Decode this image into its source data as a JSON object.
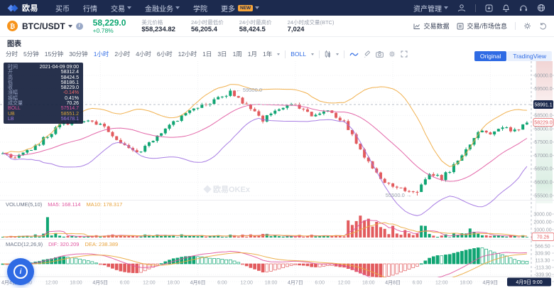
{
  "colors": {
    "navy": "#1c2a4e",
    "accent": "#2f6be4",
    "up": "#10a573",
    "down": "#e25b5e",
    "boll_mid": "#e0559f",
    "boll_ub": "#efa93c",
    "boll_lb": "#9f6fe0",
    "ma_fast": "#e0559f",
    "ma_slow": "#eba93c"
  },
  "topnav": {
    "brand": "欧易",
    "items": [
      {
        "label": "买币"
      },
      {
        "label": "行情"
      },
      {
        "label": "交易",
        "caret": true
      },
      {
        "label": "金融业务",
        "caret": true
      },
      {
        "label": "学院"
      },
      {
        "label": "更多",
        "badge": "NEW",
        "caret": true
      }
    ],
    "asset_menu": "资产管理"
  },
  "ticker": {
    "pair": "BTC/USDT",
    "price": "58,229.0",
    "change": "+0.78%",
    "stats": [
      {
        "label": "美元价格",
        "value": "$58,234.82"
      },
      {
        "label": "24小时最低价",
        "value": "56,205.4"
      },
      {
        "label": "24小时最高价",
        "value": "58,424.5"
      },
      {
        "label": "24小时成交量(BTC)",
        "value": "7,024"
      }
    ],
    "actions": [
      {
        "label": "交易数据"
      },
      {
        "label": "交易/市场信息"
      }
    ]
  },
  "chart_header": {
    "tab": "图表"
  },
  "toolbar": {
    "timeframes": [
      "分时",
      "5分钟",
      "15分钟",
      "30分钟",
      "1小时",
      "2小时",
      "4小时",
      "6小时",
      "12小时",
      "1日",
      "3日",
      "1周",
      "1月",
      "1年"
    ],
    "active_timeframe": "1小时",
    "indicator": "BOLL",
    "view_toggle": {
      "options": [
        "Original",
        "TradingView"
      ],
      "active": "Original"
    }
  },
  "tooltip": {
    "rows": [
      {
        "label": "时间",
        "value": "2021-04-09 09:00"
      },
      {
        "label": "开",
        "value": "58312.4"
      },
      {
        "label": "高",
        "value": "58424.5"
      },
      {
        "label": "低",
        "value": "58186.1"
      },
      {
        "label": "收",
        "value": "58229.0"
      },
      {
        "label": "涨幅",
        "value": "-0.14%",
        "cls": "down"
      },
      {
        "label": "振幅",
        "value": "0.41%"
      },
      {
        "label": "成交量",
        "value": "70.26"
      },
      {
        "label": "BOLL",
        "value": "57514.7",
        "cls": "boll"
      },
      {
        "label": "UB",
        "value": "58551.2",
        "cls": "ub"
      },
      {
        "label": "LB",
        "value": "56478.1",
        "cls": "lb"
      }
    ]
  },
  "volume_header": {
    "name": "VOLUME(5,10)",
    "ma5": "MA5: 168.114",
    "ma10": "MA10: 178.317"
  },
  "macd_header": {
    "name": "MACD(12,26,9)",
    "dif": "DIF: 320.209",
    "dea": "DEA: 238.389"
  },
  "watermark": "欧易OKEx",
  "chart_data": {
    "type": "candlestick",
    "pair": "BTC/USDT",
    "interval": "1小时",
    "time_range": [
      "2021-04-04 00:00",
      "2021-04-09 09:00"
    ],
    "hours": 130,
    "last_close": 58229.0,
    "price_ticks": [
      "60000.0",
      "59500.0",
      "59000.0",
      "58500.0",
      "58000.0",
      "57500.0",
      "57000.0",
      "56500.0",
      "56000.0",
      "55500.0"
    ],
    "crosshair_price": "58991.1",
    "last_price": "58229.0",
    "high_label": "← 59500.0",
    "low_label": "55500.0 →",
    "volume_ticks": [
      "3000.00",
      "2000.00",
      "1000.00"
    ],
    "volume_badge": "70.26",
    "macd_ticks": [
      "566.50",
      "339.90",
      "113.30",
      "-113.30",
      "-339.90",
      "-566.50"
    ],
    "crosshair_time": "4月9日 9:00",
    "time_ticks": [
      [
        0,
        "4月4日"
      ],
      [
        6,
        "6:00"
      ],
      [
        12,
        "12:00"
      ],
      [
        18,
        "18:00"
      ],
      [
        24,
        "4月5日"
      ],
      [
        30,
        "6:00"
      ],
      [
        36,
        "12:00"
      ],
      [
        42,
        "18:00"
      ],
      [
        48,
        "4月6日"
      ],
      [
        54,
        "6:00"
      ],
      [
        60,
        "12:00"
      ],
      [
        66,
        "18:00"
      ],
      [
        72,
        "4月7日"
      ],
      [
        78,
        "6:00"
      ],
      [
        84,
        "12:00"
      ],
      [
        90,
        "18:00"
      ],
      [
        96,
        "4月8日"
      ],
      [
        102,
        "6:00"
      ],
      [
        108,
        "12:00"
      ],
      [
        114,
        "18:00"
      ],
      [
        120,
        "4月9日"
      ]
    ],
    "close_anchors": [
      [
        0,
        57050
      ],
      [
        3,
        56850
      ],
      [
        8,
        57350
      ],
      [
        14,
        58150
      ],
      [
        20,
        58300
      ],
      [
        24,
        58150
      ],
      [
        28,
        57650
      ],
      [
        33,
        57050
      ],
      [
        38,
        57750
      ],
      [
        44,
        58500
      ],
      [
        48,
        58750
      ],
      [
        52,
        59100
      ],
      [
        56,
        59380
      ],
      [
        60,
        58850
      ],
      [
        64,
        58350
      ],
      [
        68,
        58700
      ],
      [
        72,
        58900
      ],
      [
        76,
        58450
      ],
      [
        80,
        58650
      ],
      [
        84,
        58300
      ],
      [
        87,
        57500
      ],
      [
        90,
        56700
      ],
      [
        93,
        56100
      ],
      [
        96,
        55900
      ],
      [
        99,
        55750
      ],
      [
        102,
        55600
      ],
      [
        105,
        56350
      ],
      [
        108,
        56150
      ],
      [
        111,
        56600
      ],
      [
        114,
        57200
      ],
      [
        117,
        57900
      ],
      [
        120,
        57750
      ],
      [
        123,
        58100
      ],
      [
        126,
        57900
      ],
      [
        129,
        58229
      ]
    ],
    "forced": {
      "high": [
        56,
        59500
      ],
      "low": [
        102,
        55500
      ],
      "volume_spikes": {
        "11": 2600,
        "88": 2800,
        "90": 2400,
        "92": 2000,
        "96": 1500,
        "115": 1150,
        "129": 70
      }
    },
    "indicators": {
      "boll_period": 20,
      "boll_k": 2,
      "macd": [
        12,
        26,
        9
      ],
      "vol_ma": [
        5,
        10
      ]
    }
  }
}
